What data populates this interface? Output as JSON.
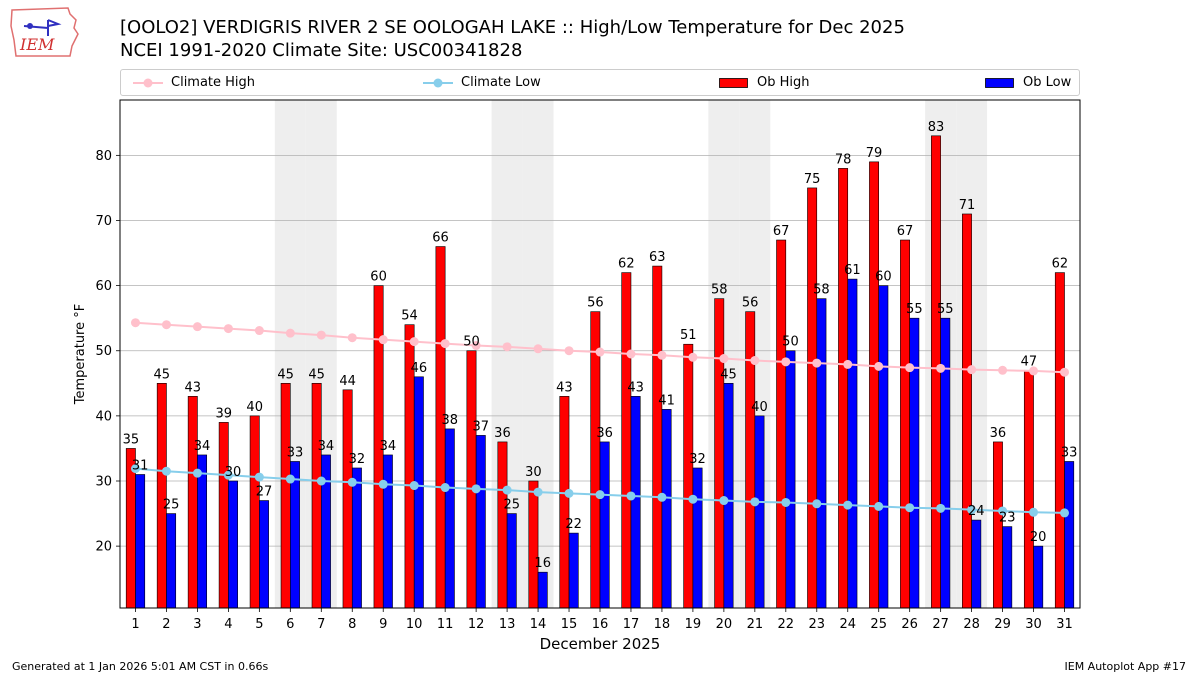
{
  "header": {
    "title_line1": "[OOLO2] VERDIGRIS RIVER 2 SE OOLOGAH LAKE :: High/Low Temperature for Dec 2025",
    "title_line2": "NCEI 1991-2020 Climate Site: USC00341828",
    "logo_text": "IEM"
  },
  "legend": [
    {
      "label": "Climate High",
      "color": "#ffc0cb",
      "kind": "line"
    },
    {
      "label": "Climate Low",
      "color": "#87ceeb",
      "kind": "line"
    },
    {
      "label": "Ob High",
      "color": "#ff0000",
      "kind": "bar"
    },
    {
      "label": "Ob Low",
      "color": "#0000ff",
      "kind": "bar"
    }
  ],
  "footer": {
    "left": "Generated at 1 Jan 2026 5:01 AM CST in 0.66s",
    "right": "IEM Autoplot App #17"
  },
  "chart_data": {
    "type": "bar",
    "xlabel": "December 2025",
    "ylabel": "Temperature °F",
    "ylim": [
      10.5,
      88.5
    ],
    "yticks": [
      20,
      30,
      40,
      50,
      60,
      70,
      80
    ],
    "grid": "horizontal",
    "legend_position": "top",
    "weekend_shading": [
      6,
      7,
      13,
      14,
      20,
      21,
      27,
      28
    ],
    "categories": [
      "1",
      "2",
      "3",
      "4",
      "5",
      "6",
      "7",
      "8",
      "9",
      "10",
      "11",
      "12",
      "13",
      "14",
      "15",
      "16",
      "17",
      "18",
      "19",
      "20",
      "21",
      "22",
      "23",
      "24",
      "25",
      "26",
      "27",
      "28",
      "29",
      "30",
      "31"
    ],
    "series": [
      {
        "name": "Ob High",
        "type": "bar",
        "color": "#ff0000",
        "values": [
          35,
          45,
          43,
          39,
          40,
          45,
          45,
          44,
          60,
          54,
          66,
          50,
          36,
          30,
          43,
          56,
          62,
          63,
          51,
          58,
          56,
          67,
          75,
          78,
          79,
          67,
          83,
          71,
          36,
          47,
          62
        ]
      },
      {
        "name": "Ob Low",
        "type": "bar",
        "color": "#0000ff",
        "values": [
          31,
          25,
          34,
          30,
          27,
          33,
          34,
          32,
          34,
          46,
          38,
          37,
          25,
          16,
          22,
          36,
          43,
          41,
          32,
          45,
          40,
          50,
          58,
          61,
          60,
          55,
          55,
          24,
          23,
          20,
          33
        ]
      },
      {
        "name": "Climate High",
        "type": "line",
        "color": "#ffc0cb",
        "values": [
          54.3,
          54.0,
          53.7,
          53.4,
          53.1,
          52.7,
          52.4,
          52.0,
          51.7,
          51.4,
          51.1,
          50.8,
          50.6,
          50.3,
          50.0,
          49.8,
          49.5,
          49.3,
          49.0,
          48.8,
          48.5,
          48.3,
          48.1,
          47.9,
          47.6,
          47.4,
          47.3,
          47.1,
          47.0,
          46.9,
          46.7
        ]
      },
      {
        "name": "Climate Low",
        "type": "line",
        "color": "#87ceeb",
        "values": [
          31.9,
          31.5,
          31.2,
          30.9,
          30.6,
          30.3,
          30.0,
          29.8,
          29.5,
          29.3,
          29.0,
          28.8,
          28.6,
          28.3,
          28.1,
          27.9,
          27.7,
          27.5,
          27.2,
          27.0,
          26.8,
          26.7,
          26.5,
          26.3,
          26.1,
          25.9,
          25.8,
          25.6,
          25.4,
          25.2,
          25.1
        ]
      }
    ]
  }
}
